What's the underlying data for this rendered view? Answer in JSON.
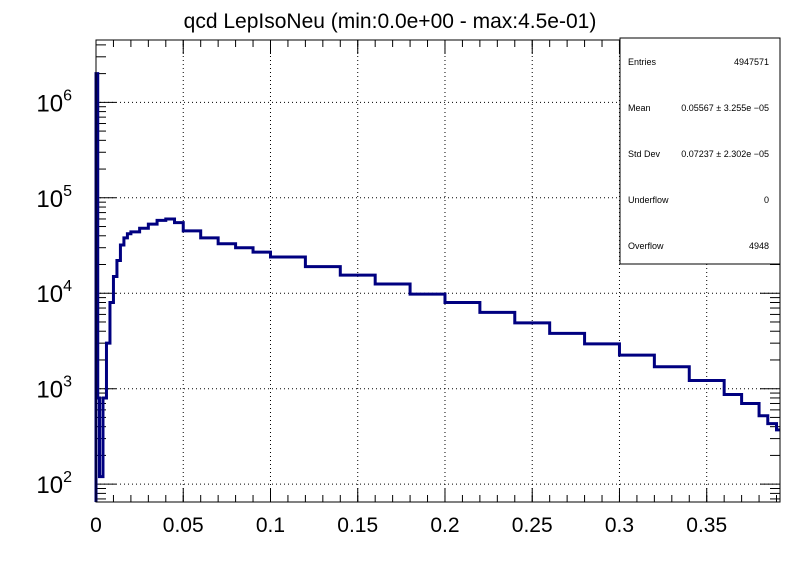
{
  "chart_data": {
    "type": "line",
    "style": "step-histogram",
    "title": "qcd LepIsoNeu (min:0.0e+00 - max:4.5e-01)",
    "xlabel": "",
    "ylabel": "",
    "xlim": [
      0,
      0.392
    ],
    "ylim": [
      65,
      4500000
    ],
    "yscale": "log",
    "grid": true,
    "line_color": "#000080",
    "x_ticks": [
      "0",
      "0.05",
      "0.1",
      "0.15",
      "0.2",
      "0.25",
      "0.3",
      "0.35"
    ],
    "x_tick_values": [
      0,
      0.05,
      0.1,
      0.15,
      0.2,
      0.25,
      0.3,
      0.35
    ],
    "y_ticks": [
      {
        "base": "10",
        "exp": "2",
        "value": 100
      },
      {
        "base": "10",
        "exp": "3",
        "value": 1000
      },
      {
        "base": "10",
        "exp": "4",
        "value": 10000
      },
      {
        "base": "10",
        "exp": "5",
        "value": 100000
      },
      {
        "base": "10",
        "exp": "6",
        "value": 1000000
      }
    ],
    "series": [
      {
        "x": [
          0.0,
          0.001,
          0.002,
          0.004,
          0.006,
          0.008,
          0.01,
          0.012,
          0.014,
          0.016,
          0.018,
          0.02,
          0.025,
          0.03,
          0.035,
          0.04,
          0.045,
          0.05,
          0.06,
          0.07,
          0.08,
          0.09,
          0.1,
          0.12,
          0.14,
          0.16,
          0.18,
          0.2,
          0.22,
          0.24,
          0.26,
          0.28,
          0.3,
          0.32,
          0.34,
          0.36,
          0.37,
          0.38,
          0.385,
          0.39
        ],
        "y": [
          2000000,
          800,
          120,
          800,
          3000,
          8000,
          15000,
          22000,
          32000,
          38000,
          42000,
          44000,
          48000,
          53000,
          58000,
          60000,
          55000,
          45000,
          38000,
          33000,
          30000,
          27000,
          24000,
          19000,
          15500,
          12500,
          9800,
          8000,
          6300,
          4900,
          3800,
          2950,
          2250,
          1700,
          1220,
          870,
          700,
          520,
          430,
          370
        ]
      }
    ]
  },
  "stats": {
    "rows": [
      {
        "label": "Entries",
        "value": "4947571"
      },
      {
        "label": "Mean",
        "value": "0.05567  ± 3.255e −05"
      },
      {
        "label": "Std Dev",
        "value": "0.07237  ± 2.302e −05"
      },
      {
        "label": "Underflow",
        "value": "0"
      },
      {
        "label": "Overflow",
        "value": "4948"
      }
    ]
  }
}
